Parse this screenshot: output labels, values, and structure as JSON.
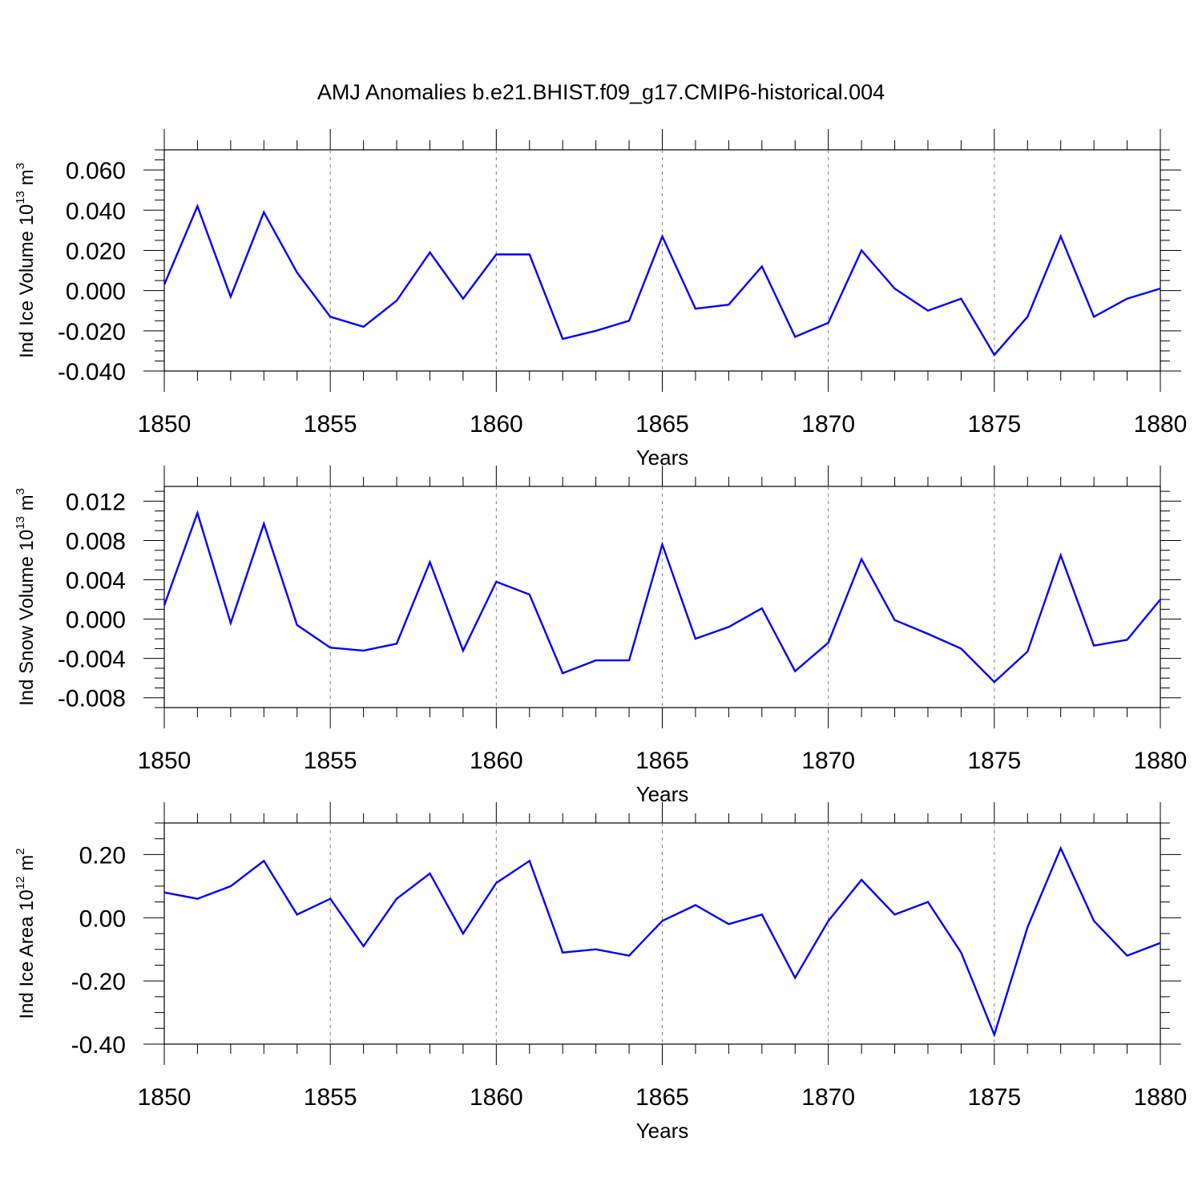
{
  "chart_data": {
    "title": "AMJ Anomalies b.e21.BHIST.f09_g17.CMIP6-historical.004",
    "type": "line",
    "line_color": "#0000ff",
    "x": [
      1850,
      1851,
      1852,
      1853,
      1854,
      1855,
      1856,
      1857,
      1858,
      1859,
      1860,
      1861,
      1862,
      1863,
      1864,
      1865,
      1866,
      1867,
      1868,
      1869,
      1870,
      1871,
      1872,
      1873,
      1874,
      1875,
      1876,
      1877,
      1878,
      1879,
      1880
    ],
    "xlim": [
      1850,
      1880
    ],
    "xticks": [
      "1850",
      "1855",
      "1860",
      "1865",
      "1870",
      "1875",
      "1880"
    ],
    "panels": [
      {
        "ylabel_main": "Ind Ice Volume 10",
        "ylabel_exp": "13",
        "ylabel_unit": " m",
        "ylabel_unit_exp": "3",
        "xlabel": "Years",
        "ylim": [
          -0.04,
          0.07
        ],
        "yticks": [
          -0.04,
          -0.02,
          0.0,
          0.02,
          0.04,
          0.06
        ],
        "ytick_labels": [
          "-0.040",
          "-0.020",
          "0.000",
          "0.020",
          "0.040",
          "0.060"
        ],
        "values": [
          0.003,
          0.042,
          -0.003,
          0.039,
          0.009,
          -0.013,
          -0.018,
          -0.005,
          0.019,
          -0.004,
          0.018,
          0.018,
          -0.024,
          -0.02,
          -0.015,
          0.027,
          -0.009,
          -0.007,
          0.012,
          -0.023,
          -0.016,
          0.02,
          0.001,
          -0.01,
          -0.004,
          -0.032,
          -0.013,
          0.027,
          -0.013,
          -0.004,
          0.001
        ]
      },
      {
        "ylabel_main": "Ind Snow Volume 10",
        "ylabel_exp": "13",
        "ylabel_unit": " m",
        "ylabel_unit_exp": "3",
        "xlabel": "Years",
        "ylim": [
          -0.009,
          0.0135
        ],
        "yticks": [
          -0.008,
          -0.004,
          0.0,
          0.004,
          0.008,
          0.012
        ],
        "ytick_labels": [
          "-0.008",
          "-0.004",
          "0.000",
          "0.004",
          "0.008",
          "0.012"
        ],
        "values": [
          0.0014,
          0.0108,
          -0.0004,
          0.0097,
          -0.0006,
          -0.0029,
          -0.0032,
          -0.0025,
          0.0058,
          -0.0032,
          0.0038,
          0.0025,
          -0.0055,
          -0.0042,
          -0.0042,
          0.0076,
          -0.002,
          -0.0008,
          0.0011,
          -0.0053,
          -0.0024,
          0.0061,
          -0.0001,
          -0.0015,
          -0.003,
          -0.0064,
          -0.0033,
          0.0065,
          -0.0027,
          -0.0021,
          0.002
        ]
      },
      {
        "ylabel_main": "Ind Ice Area 10",
        "ylabel_exp": "12",
        "ylabel_unit": " m",
        "ylabel_unit_exp": "2",
        "xlabel": "Years",
        "ylim": [
          -0.4,
          0.3
        ],
        "yticks": [
          -0.4,
          -0.2,
          0.0,
          0.2
        ],
        "ytick_labels": [
          "-0.40",
          "-0.20",
          "0.00",
          "0.20"
        ],
        "values": [
          0.08,
          0.06,
          0.1,
          0.18,
          0.01,
          0.06,
          -0.09,
          0.06,
          0.14,
          -0.05,
          0.11,
          0.18,
          -0.11,
          -0.1,
          -0.12,
          -0.01,
          0.04,
          -0.02,
          0.01,
          -0.19,
          -0.01,
          0.12,
          0.01,
          0.05,
          -0.11,
          -0.37,
          -0.03,
          0.22,
          -0.01,
          -0.12,
          -0.08
        ]
      }
    ]
  }
}
